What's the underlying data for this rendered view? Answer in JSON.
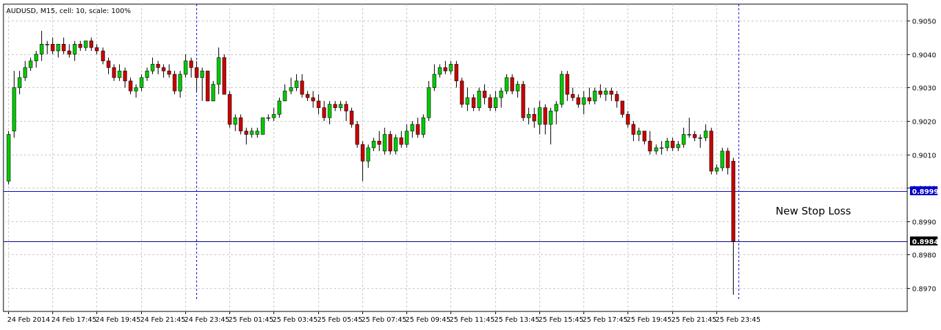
{
  "chart_data": {
    "type": "candlestick",
    "title": "AUDUSD, M15, cell: 10, scale: 100%",
    "ylim": [
      0.8963,
      0.9055
    ],
    "y_ticks": [
      "0.9050",
      "0.9040",
      "0.9030",
      "0.9020",
      "0.9010",
      "0.9000",
      "0.8990",
      "0.8980",
      "0.8970"
    ],
    "x_tick_labels": [
      "24 Feb 2014",
      "24 Feb 17:45",
      "24 Feb 19:45",
      "24 Feb 21:45",
      "24 Feb 23:45",
      "25 Feb 01:45",
      "25 Feb 03:45",
      "25 Feb 05:45",
      "25 Feb 07:45",
      "25 Feb 09:45",
      "25 Feb 11:45",
      "25 Feb 13:45",
      "25 Feb 15:45",
      "25 Feb 17:45",
      "25 Feb 19:45",
      "25 Feb 21:45",
      "25 Feb 23:45"
    ],
    "day_separators": [
      34,
      132
    ],
    "grid": true,
    "candles": [
      {
        "o": 0.9002,
        "h": 0.9017,
        "l": 0.9001,
        "c": 0.9016
      },
      {
        "o": 0.9017,
        "h": 0.9035,
        "l": 0.9015,
        "c": 0.903
      },
      {
        "o": 0.903,
        "h": 0.9035,
        "l": 0.9028,
        "c": 0.9033
      },
      {
        "o": 0.9033,
        "h": 0.9038,
        "l": 0.9032,
        "c": 0.9036
      },
      {
        "o": 0.9036,
        "h": 0.9039,
        "l": 0.9035,
        "c": 0.9038
      },
      {
        "o": 0.9038,
        "h": 0.9041,
        "l": 0.9036,
        "c": 0.904
      },
      {
        "o": 0.904,
        "h": 0.9047,
        "l": 0.9038,
        "c": 0.9043
      },
      {
        "o": 0.9043,
        "h": 0.9044,
        "l": 0.904,
        "c": 0.9043
      },
      {
        "o": 0.9043,
        "h": 0.9045,
        "l": 0.904,
        "c": 0.9041
      },
      {
        "o": 0.9041,
        "h": 0.9043,
        "l": 0.9039,
        "c": 0.9043
      },
      {
        "o": 0.9043,
        "h": 0.9045,
        "l": 0.904,
        "c": 0.9041
      },
      {
        "o": 0.9041,
        "h": 0.9043,
        "l": 0.9039,
        "c": 0.904
      },
      {
        "o": 0.904,
        "h": 0.9044,
        "l": 0.9038,
        "c": 0.9043
      },
      {
        "o": 0.9043,
        "h": 0.9044,
        "l": 0.9041,
        "c": 0.9042
      },
      {
        "o": 0.9042,
        "h": 0.9044,
        "l": 0.9041,
        "c": 0.9044
      },
      {
        "o": 0.9044,
        "h": 0.9045,
        "l": 0.9041,
        "c": 0.9042
      },
      {
        "o": 0.9042,
        "h": 0.9043,
        "l": 0.904,
        "c": 0.9041
      },
      {
        "o": 0.9041,
        "h": 0.9042,
        "l": 0.9037,
        "c": 0.9038
      },
      {
        "o": 0.9038,
        "h": 0.9039,
        "l": 0.9034,
        "c": 0.9036
      },
      {
        "o": 0.9036,
        "h": 0.9037,
        "l": 0.9032,
        "c": 0.9033
      },
      {
        "o": 0.9033,
        "h": 0.9037,
        "l": 0.9032,
        "c": 0.9035
      },
      {
        "o": 0.9035,
        "h": 0.9036,
        "l": 0.903,
        "c": 0.9032
      },
      {
        "o": 0.9032,
        "h": 0.9033,
        "l": 0.9028,
        "c": 0.9029
      },
      {
        "o": 0.9029,
        "h": 0.9031,
        "l": 0.9027,
        "c": 0.903
      },
      {
        "o": 0.903,
        "h": 0.9034,
        "l": 0.9029,
        "c": 0.9033
      },
      {
        "o": 0.9033,
        "h": 0.9036,
        "l": 0.9032,
        "c": 0.9035
      },
      {
        "o": 0.9035,
        "h": 0.9039,
        "l": 0.9034,
        "c": 0.9037
      },
      {
        "o": 0.9037,
        "h": 0.9038,
        "l": 0.9034,
        "c": 0.9036
      },
      {
        "o": 0.9036,
        "h": 0.9037,
        "l": 0.9033,
        "c": 0.9035
      },
      {
        "o": 0.9035,
        "h": 0.9037,
        "l": 0.9033,
        "c": 0.9034
      },
      {
        "o": 0.9034,
        "h": 0.9035,
        "l": 0.9028,
        "c": 0.9029
      },
      {
        "o": 0.9029,
        "h": 0.9035,
        "l": 0.9027,
        "c": 0.9034
      },
      {
        "o": 0.9034,
        "h": 0.904,
        "l": 0.9033,
        "c": 0.9038
      },
      {
        "o": 0.9038,
        "h": 0.9039,
        "l": 0.9033,
        "c": 0.9036
      },
      {
        "o": 0.9036,
        "h": 0.9038,
        "l": 0.9029,
        "c": 0.9033
      },
      {
        "o": 0.9033,
        "h": 0.9036,
        "l": 0.9026,
        "c": 0.9035
      },
      {
        "o": 0.9035,
        "h": 0.9035,
        "l": 0.9026,
        "c": 0.9026
      },
      {
        "o": 0.9026,
        "h": 0.9032,
        "l": 0.9026,
        "c": 0.9031
      },
      {
        "o": 0.9031,
        "h": 0.9042,
        "l": 0.9028,
        "c": 0.9039
      },
      {
        "o": 0.9039,
        "h": 0.904,
        "l": 0.9028,
        "c": 0.9028
      },
      {
        "o": 0.9028,
        "h": 0.9029,
        "l": 0.9018,
        "c": 0.9019
      },
      {
        "o": 0.9019,
        "h": 0.9022,
        "l": 0.9017,
        "c": 0.9021
      },
      {
        "o": 0.9021,
        "h": 0.9022,
        "l": 0.9016,
        "c": 0.9017
      },
      {
        "o": 0.9017,
        "h": 0.9018,
        "l": 0.9013,
        "c": 0.9016
      },
      {
        "o": 0.9016,
        "h": 0.9018,
        "l": 0.9015,
        "c": 0.9017
      },
      {
        "o": 0.9016,
        "h": 0.9018,
        "l": 0.9015,
        "c": 0.9017
      },
      {
        "o": 0.9016,
        "h": 0.9021,
        "l": 0.9016,
        "c": 0.9021
      },
      {
        "o": 0.9021,
        "h": 0.9022,
        "l": 0.902,
        "c": 0.9021
      },
      {
        "o": 0.9021,
        "h": 0.9024,
        "l": 0.902,
        "c": 0.9022
      },
      {
        "o": 0.9022,
        "h": 0.9027,
        "l": 0.9021,
        "c": 0.9026
      },
      {
        "o": 0.9026,
        "h": 0.9031,
        "l": 0.9026,
        "c": 0.9029
      },
      {
        "o": 0.9029,
        "h": 0.9033,
        "l": 0.9028,
        "c": 0.903
      },
      {
        "o": 0.903,
        "h": 0.9034,
        "l": 0.9029,
        "c": 0.9032
      },
      {
        "o": 0.9032,
        "h": 0.9034,
        "l": 0.9027,
        "c": 0.9028
      },
      {
        "o": 0.9028,
        "h": 0.9029,
        "l": 0.9026,
        "c": 0.9027
      },
      {
        "o": 0.9027,
        "h": 0.9029,
        "l": 0.9024,
        "c": 0.9026
      },
      {
        "o": 0.9026,
        "h": 0.9028,
        "l": 0.9022,
        "c": 0.9024
      },
      {
        "o": 0.9024,
        "h": 0.9026,
        "l": 0.902,
        "c": 0.9021
      },
      {
        "o": 0.9021,
        "h": 0.9026,
        "l": 0.9019,
        "c": 0.9025
      },
      {
        "o": 0.9025,
        "h": 0.9026,
        "l": 0.9023,
        "c": 0.9024
      },
      {
        "o": 0.9024,
        "h": 0.9026,
        "l": 0.9023,
        "c": 0.9025
      },
      {
        "o": 0.9025,
        "h": 0.9026,
        "l": 0.902,
        "c": 0.9023
      },
      {
        "o": 0.9023,
        "h": 0.9024,
        "l": 0.9018,
        "c": 0.9019
      },
      {
        "o": 0.9019,
        "h": 0.902,
        "l": 0.9012,
        "c": 0.9013
      },
      {
        "o": 0.9013,
        "h": 0.9014,
        "l": 0.9002,
        "c": 0.9008
      },
      {
        "o": 0.9008,
        "h": 0.9013,
        "l": 0.9006,
        "c": 0.9012
      },
      {
        "o": 0.9012,
        "h": 0.9015,
        "l": 0.9011,
        "c": 0.9014
      },
      {
        "o": 0.9014,
        "h": 0.9017,
        "l": 0.9011,
        "c": 0.9013
      },
      {
        "o": 0.9011,
        "h": 0.9018,
        "l": 0.901,
        "c": 0.9016
      },
      {
        "o": 0.9016,
        "h": 0.9017,
        "l": 0.901,
        "c": 0.9011
      },
      {
        "o": 0.9011,
        "h": 0.9016,
        "l": 0.901,
        "c": 0.9015
      },
      {
        "o": 0.9015,
        "h": 0.9017,
        "l": 0.9012,
        "c": 0.9013
      },
      {
        "o": 0.9013,
        "h": 0.9019,
        "l": 0.9012,
        "c": 0.9017
      },
      {
        "o": 0.9017,
        "h": 0.902,
        "l": 0.9015,
        "c": 0.9019
      },
      {
        "o": 0.9019,
        "h": 0.9021,
        "l": 0.9015,
        "c": 0.9016
      },
      {
        "o": 0.9016,
        "h": 0.9022,
        "l": 0.9015,
        "c": 0.9021
      },
      {
        "o": 0.9021,
        "h": 0.9032,
        "l": 0.902,
        "c": 0.903
      },
      {
        "o": 0.903,
        "h": 0.9037,
        "l": 0.9029,
        "c": 0.9034
      },
      {
        "o": 0.9034,
        "h": 0.9037,
        "l": 0.9033,
        "c": 0.9036
      },
      {
        "o": 0.9036,
        "h": 0.9038,
        "l": 0.9034,
        "c": 0.9035
      },
      {
        "o": 0.9035,
        "h": 0.9038,
        "l": 0.9034,
        "c": 0.9037
      },
      {
        "o": 0.9037,
        "h": 0.9038,
        "l": 0.903,
        "c": 0.9032
      },
      {
        "o": 0.9032,
        "h": 0.9033,
        "l": 0.9024,
        "c": 0.9025
      },
      {
        "o": 0.9025,
        "h": 0.903,
        "l": 0.9023,
        "c": 0.9027
      },
      {
        "o": 0.9027,
        "h": 0.9028,
        "l": 0.9023,
        "c": 0.9024
      },
      {
        "o": 0.9024,
        "h": 0.903,
        "l": 0.9023,
        "c": 0.9029
      },
      {
        "o": 0.9029,
        "h": 0.9031,
        "l": 0.9025,
        "c": 0.9027
      },
      {
        "o": 0.9027,
        "h": 0.9028,
        "l": 0.9023,
        "c": 0.9024
      },
      {
        "o": 0.9024,
        "h": 0.9029,
        "l": 0.9023,
        "c": 0.9027
      },
      {
        "o": 0.9027,
        "h": 0.903,
        "l": 0.9024,
        "c": 0.9029
      },
      {
        "o": 0.9029,
        "h": 0.9034,
        "l": 0.9028,
        "c": 0.9033
      },
      {
        "o": 0.9033,
        "h": 0.9034,
        "l": 0.9028,
        "c": 0.9029
      },
      {
        "o": 0.9029,
        "h": 0.9032,
        "l": 0.9027,
        "c": 0.9031
      },
      {
        "o": 0.9031,
        "h": 0.9032,
        "l": 0.902,
        "c": 0.9021
      },
      {
        "o": 0.9021,
        "h": 0.9024,
        "l": 0.9019,
        "c": 0.9022
      },
      {
        "o": 0.9022,
        "h": 0.9024,
        "l": 0.9018,
        "c": 0.902
      },
      {
        "o": 0.9019,
        "h": 0.9026,
        "l": 0.9016,
        "c": 0.9024
      },
      {
        "o": 0.9024,
        "h": 0.9025,
        "l": 0.9016,
        "c": 0.9019
      },
      {
        "o": 0.9019,
        "h": 0.9024,
        "l": 0.9013,
        "c": 0.9023
      },
      {
        "o": 0.9023,
        "h": 0.9026,
        "l": 0.9019,
        "c": 0.9025
      },
      {
        "o": 0.9025,
        "h": 0.9035,
        "l": 0.9024,
        "c": 0.9034
      },
      {
        "o": 0.9034,
        "h": 0.9035,
        "l": 0.9026,
        "c": 0.9028
      },
      {
        "o": 0.9028,
        "h": 0.903,
        "l": 0.9026,
        "c": 0.9027
      },
      {
        "o": 0.9027,
        "h": 0.9028,
        "l": 0.9024,
        "c": 0.9025
      },
      {
        "o": 0.9025,
        "h": 0.9029,
        "l": 0.9022,
        "c": 0.9027
      },
      {
        "o": 0.9027,
        "h": 0.903,
        "l": 0.9025,
        "c": 0.9026
      },
      {
        "o": 0.9026,
        "h": 0.903,
        "l": 0.9025,
        "c": 0.9029
      },
      {
        "o": 0.9029,
        "h": 0.9031,
        "l": 0.9027,
        "c": 0.9028
      },
      {
        "o": 0.9028,
        "h": 0.903,
        "l": 0.9026,
        "c": 0.9029
      },
      {
        "o": 0.9029,
        "h": 0.903,
        "l": 0.9026,
        "c": 0.9028
      },
      {
        "o": 0.9028,
        "h": 0.9029,
        "l": 0.9024,
        "c": 0.9026
      },
      {
        "o": 0.9026,
        "h": 0.9026,
        "l": 0.9021,
        "c": 0.9022
      },
      {
        "o": 0.9022,
        "h": 0.9023,
        "l": 0.9018,
        "c": 0.9019
      },
      {
        "o": 0.9019,
        "h": 0.902,
        "l": 0.9014,
        "c": 0.9016
      },
      {
        "o": 0.9016,
        "h": 0.9018,
        "l": 0.9014,
        "c": 0.9017
      },
      {
        "o": 0.9017,
        "h": 0.9017,
        "l": 0.9013,
        "c": 0.9014
      },
      {
        "o": 0.9014,
        "h": 0.9017,
        "l": 0.901,
        "c": 0.9011
      },
      {
        "o": 0.9011,
        "h": 0.9013,
        "l": 0.901,
        "c": 0.9012
      },
      {
        "o": 0.9012,
        "h": 0.9014,
        "l": 0.901,
        "c": 0.9012
      },
      {
        "o": 0.9012,
        "h": 0.9015,
        "l": 0.9011,
        "c": 0.9014
      },
      {
        "o": 0.9014,
        "h": 0.9015,
        "l": 0.9011,
        "c": 0.9012
      },
      {
        "o": 0.9012,
        "h": 0.9014,
        "l": 0.9011,
        "c": 0.9013
      },
      {
        "o": 0.9013,
        "h": 0.9018,
        "l": 0.9012,
        "c": 0.9016
      },
      {
        "o": 0.9016,
        "h": 0.9021,
        "l": 0.9015,
        "c": 0.9016
      },
      {
        "o": 0.9016,
        "h": 0.9017,
        "l": 0.9014,
        "c": 0.9015
      },
      {
        "o": 0.9015,
        "h": 0.9016,
        "l": 0.9012,
        "c": 0.9015
      },
      {
        "o": 0.9015,
        "h": 0.9019,
        "l": 0.9014,
        "c": 0.9017
      },
      {
        "o": 0.9017,
        "h": 0.9018,
        "l": 0.9004,
        "c": 0.9005
      },
      {
        "o": 0.9005,
        "h": 0.9007,
        "l": 0.9004,
        "c": 0.9006
      },
      {
        "o": 0.9006,
        "h": 0.9012,
        "l": 0.9005,
        "c": 0.9011
      },
      {
        "o": 0.9011,
        "h": 0.9012,
        "l": 0.9004,
        "c": 0.9006
      },
      {
        "o": 0.9008,
        "h": 0.9009,
        "l": 0.8968,
        "c": 0.8984
      }
    ],
    "horizontal_lines": [
      {
        "value": 0.8999,
        "label": "0.8999",
        "line_color": "#0000cc",
        "badge_bg": "#0000cc",
        "badge_fg": "#ffffff"
      },
      {
        "value": 0.8984,
        "label": "0.8984",
        "line_color": "#000080",
        "badge_bg": "#000000",
        "badge_fg": "#ffffff"
      }
    ],
    "annotation": {
      "text": "New Stop Loss",
      "value": 0.8993
    },
    "colors": {
      "bull": "#00cc00",
      "bear": "#cc0000",
      "grid": "#c8c8c8",
      "axis": "#000000",
      "separator": "#0000cc"
    }
  }
}
